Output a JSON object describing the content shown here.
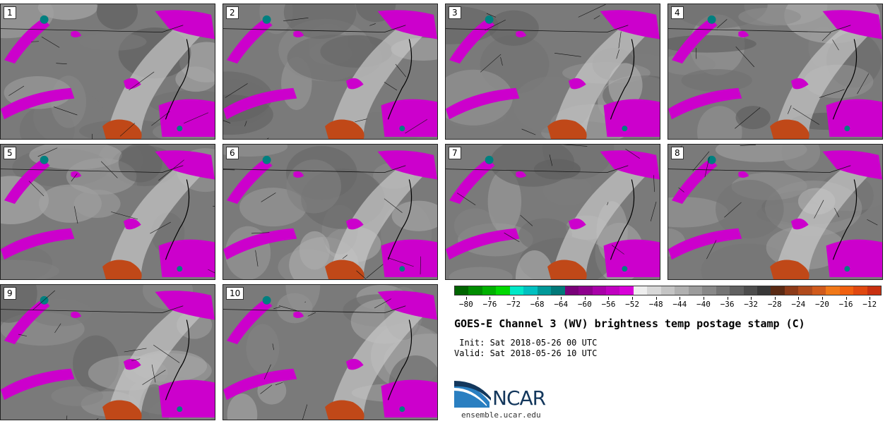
{
  "panels": [
    {
      "label": "1"
    },
    {
      "label": "2"
    },
    {
      "label": "3"
    },
    {
      "label": "4"
    },
    {
      "label": "5"
    },
    {
      "label": "6"
    },
    {
      "label": "7"
    },
    {
      "label": "8"
    },
    {
      "label": "9"
    },
    {
      "label": "10"
    }
  ],
  "colorbar": {
    "colors": [
      "#006400",
      "#008c00",
      "#00b000",
      "#00d800",
      "#00e8c8",
      "#00c0c0",
      "#009898",
      "#007878",
      "#780078",
      "#8c008c",
      "#a800a8",
      "#c000c0",
      "#d800d8",
      "#eeeeee",
      "#d8d8d8",
      "#c4c4c4",
      "#b0b0b0",
      "#9c9c9c",
      "#888888",
      "#747474",
      "#606060",
      "#4c4c4c",
      "#383838",
      "#5a2a14",
      "#8c3a18",
      "#b04a1c",
      "#d05a1c",
      "#f07818",
      "#f06010",
      "#e04810",
      "#c83010"
    ],
    "min": -82,
    "max": -10,
    "tick_values": [
      -80,
      -76,
      -72,
      -68,
      -64,
      -60,
      -56,
      -52,
      -48,
      -44,
      -40,
      -36,
      -32,
      -28,
      -24,
      -20,
      -16,
      -12
    ],
    "tick_labels": [
      "−80",
      "−76",
      "−72",
      "−68",
      "−64",
      "−60",
      "−56",
      "−52",
      "−48",
      "−44",
      "−40",
      "−36",
      "−32",
      "−28",
      "−24",
      "−20",
      "−16",
      "−12"
    ]
  },
  "title": "GOES-E Channel 3 (WV) brightness temp postage stamp (C)",
  "init": " Init: Sat 2018-05-26 00 UTC",
  "valid": "Valid: Sat 2018-05-26 10 UTC",
  "logo": {
    "name": "NCAR",
    "url": "ensemble.ucar.edu"
  }
}
